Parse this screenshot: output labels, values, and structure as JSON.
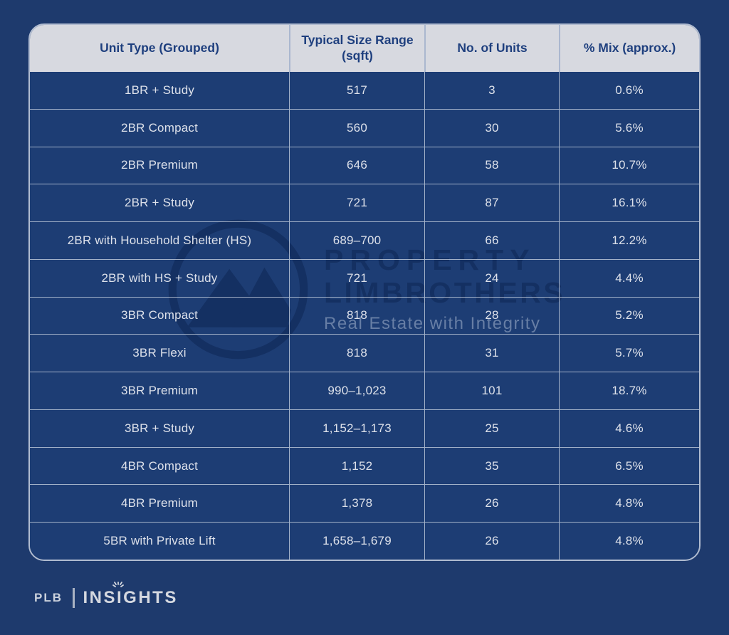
{
  "page": {
    "background_color": "#1e3a6d",
    "table_border_color": "#cbd3e2",
    "header_bg_color": "#d7d9e0",
    "header_text_color": "#1e3f7e",
    "cell_bg_color": "#1d3d74",
    "cell_text_color": "#dde1ea"
  },
  "table": {
    "columns": [
      "Unit Type (Grouped)",
      "Typical Size Range (sqft)",
      "No. of Units",
      "% Mix (approx.)"
    ],
    "rows": [
      {
        "unit_type": "1BR + Study",
        "size_range": "517",
        "units": "3",
        "mix": "0.6%"
      },
      {
        "unit_type": "2BR Compact",
        "size_range": "560",
        "units": "30",
        "mix": "5.6%"
      },
      {
        "unit_type": "2BR Premium",
        "size_range": "646",
        "units": "58",
        "mix": "10.7%"
      },
      {
        "unit_type": "2BR + Study",
        "size_range": "721",
        "units": "87",
        "mix": "16.1%"
      },
      {
        "unit_type": "2BR with Household Shelter (HS)",
        "size_range": "689–700",
        "units": "66",
        "mix": "12.2%"
      },
      {
        "unit_type": "2BR with HS + Study",
        "size_range": "721",
        "units": "24",
        "mix": "4.4%"
      },
      {
        "unit_type": "3BR Compact",
        "size_range": "818",
        "units": "28",
        "mix": "5.2%"
      },
      {
        "unit_type": "3BR Flexi",
        "size_range": "818",
        "units": "31",
        "mix": "5.7%"
      },
      {
        "unit_type": "3BR Premium",
        "size_range": "990–1,023",
        "units": "101",
        "mix": "18.7%"
      },
      {
        "unit_type": "3BR + Study",
        "size_range": "1,152–1,173",
        "units": "25",
        "mix": "4.6%"
      },
      {
        "unit_type": "4BR Compact",
        "size_range": "1,152",
        "units": "35",
        "mix": "6.5%"
      },
      {
        "unit_type": "4BR Premium",
        "size_range": "1,378",
        "units": "26",
        "mix": "4.8%"
      },
      {
        "unit_type": "5BR with Private Lift",
        "size_range": "1,658–1,679",
        "units": "26",
        "mix": "4.8%"
      }
    ]
  },
  "watermark": {
    "line1": "PROPERTY",
    "line2": "LIMBROTHERS",
    "tagline": "Real Estate with Integrity"
  },
  "footer": {
    "brand": "PLB",
    "publication": "INSIGHTS"
  }
}
